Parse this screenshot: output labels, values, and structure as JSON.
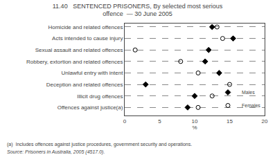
{
  "chart_data": {
    "type": "dot",
    "title": "11.40   SENTENCED PRISONERS, By selected most serious",
    "subtitle": "offence  — 30 June 2005",
    "categories": [
      "Homicide and related offences",
      "Acts intended to cause injury",
      "Sexual assault and related offences",
      "Robbery, extortion and related offences",
      "Unlawful entry with intent",
      "Deception and related offences",
      "Illicit drug offences",
      "Offences against justice(a)"
    ],
    "series": [
      {
        "name": "Males",
        "color": "#000000",
        "marker": "diamond",
        "values": [
          12.5,
          15.5,
          12.0,
          11.5,
          13.5,
          3.0,
          10.0,
          9.0
        ]
      },
      {
        "name": "Females",
        "color": "#000000",
        "marker": "circle-open",
        "values": [
          13.2,
          14.0,
          1.5,
          8.0,
          10.5,
          15.0,
          12.5,
          10.5
        ]
      }
    ],
    "xlabel": "%",
    "xlim": [
      0,
      20
    ],
    "xticks": [
      0,
      5,
      10,
      15,
      20
    ],
    "grid": true,
    "legend": "lower right",
    "annotations": [
      "(a)  Includes offences against justice procedures, government security and operations.",
      "Source: Prisoners in Australia, 2005 (4517.0)."
    ]
  }
}
